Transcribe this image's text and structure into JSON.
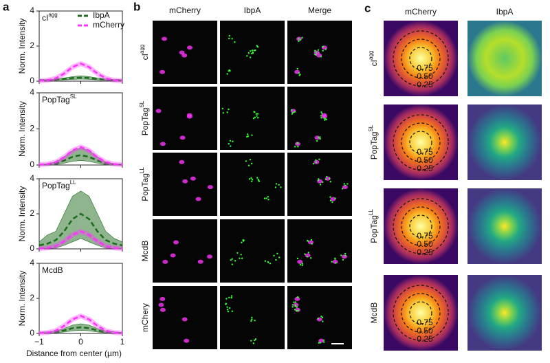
{
  "panel_labels": [
    "a",
    "b",
    "c"
  ],
  "chart_data": [
    {
      "type": "line",
      "title": [
        "cI",
        "agg"
      ],
      "ylabel": "Norm. Intensity",
      "legend": "upper right",
      "x": [
        -1,
        -0.8,
        -0.6,
        -0.4,
        -0.2,
        0,
        0.2,
        0.4,
        0.6,
        0.8,
        1
      ],
      "series": [
        {
          "name": "IbpA",
          "color": "#1e6b1e",
          "dashed": true,
          "values": [
            0.05,
            0.06,
            0.08,
            0.12,
            0.18,
            0.2,
            0.18,
            0.12,
            0.08,
            0.06,
            0.05
          ],
          "lower": [
            0.02,
            0.03,
            0.04,
            0.07,
            0.1,
            0.12,
            0.1,
            0.07,
            0.04,
            0.03,
            0.02
          ],
          "upper": [
            0.08,
            0.09,
            0.12,
            0.18,
            0.26,
            0.3,
            0.26,
            0.18,
            0.12,
            0.09,
            0.08
          ]
        },
        {
          "name": "mCherry",
          "color": "#ff33ff",
          "dashed": true,
          "values": [
            0.02,
            0.05,
            0.16,
            0.43,
            0.8,
            1,
            0.8,
            0.43,
            0.16,
            0.05,
            0.02
          ]
        }
      ],
      "xlim": [
        -1,
        1
      ],
      "ylim": [
        0,
        4
      ],
      "yticks": [
        0,
        2,
        4
      ],
      "xticks": [
        {
          "value": -1,
          "label": "−1"
        },
        0,
        1
      ]
    },
    {
      "type": "line",
      "title": [
        "PopTag",
        "SL"
      ],
      "ylabel": "Norm. Intensity",
      "x": [
        -1,
        -0.8,
        -0.6,
        -0.4,
        -0.2,
        0,
        0.2,
        0.4,
        0.6,
        0.8,
        1
      ],
      "series": [
        {
          "color": "#1e6b1e",
          "dashed": true,
          "values": [
            0.02,
            0.03,
            0.08,
            0.25,
            0.45,
            0.55,
            0.45,
            0.25,
            0.08,
            0.03,
            0.02
          ],
          "lower": [
            0,
            0,
            0.02,
            0.1,
            0.2,
            0.25,
            0.2,
            0.1,
            0.02,
            0,
            0
          ],
          "upper": [
            0.05,
            0.07,
            0.16,
            0.45,
            0.8,
            0.95,
            0.8,
            0.45,
            0.16,
            0.07,
            0.05
          ]
        },
        {
          "color": "#ff33ff",
          "dashed": true,
          "values": [
            0.02,
            0.05,
            0.16,
            0.43,
            0.8,
            1,
            0.8,
            0.43,
            0.16,
            0.05,
            0.02
          ]
        }
      ],
      "xlim": [
        -1,
        1
      ],
      "ylim": [
        0,
        4
      ],
      "yticks": [
        0,
        2,
        4
      ],
      "xticks": [
        {
          "value": -1,
          "label": "−1"
        },
        0,
        1
      ]
    },
    {
      "type": "line",
      "title": [
        "PopTag",
        "LL"
      ],
      "ylabel": "Norm. Intensity",
      "x": [
        -1,
        -0.8,
        -0.6,
        -0.4,
        -0.2,
        0,
        0.2,
        0.4,
        0.6,
        0.8,
        1
      ],
      "series": [
        {
          "color": "#1e6b1e",
          "dashed": true,
          "values": [
            0.2,
            0.3,
            0.5,
            1.0,
            1.7,
            2.0,
            1.7,
            1.0,
            0.5,
            0.3,
            0.2
          ],
          "lower": [
            0,
            0,
            0.05,
            0.2,
            0.4,
            0.6,
            0.4,
            0.2,
            0.05,
            0,
            0
          ],
          "upper": [
            0.4,
            0.8,
            1.0,
            2.0,
            3.0,
            3.3,
            3.0,
            2.0,
            1.0,
            0.6,
            0.4
          ]
        },
        {
          "color": "#ff33ff",
          "dashed": true,
          "values": [
            0.02,
            0.05,
            0.16,
            0.43,
            0.8,
            1,
            0.8,
            0.43,
            0.16,
            0.05,
            0.02
          ]
        }
      ],
      "xlim": [
        -1,
        1
      ],
      "ylim": [
        0,
        4
      ],
      "yticks": [
        0,
        2,
        4
      ],
      "xticks": [
        {
          "value": -1,
          "label": "−1"
        },
        0,
        1
      ]
    },
    {
      "type": "line",
      "title": [
        "McdB"
      ],
      "ylabel": "Norm. Intensity",
      "xlabel": "Distance from center (µm)",
      "x": [
        -1,
        -0.8,
        -0.6,
        -0.4,
        -0.2,
        0,
        0.2,
        0.4,
        0.6,
        0.8,
        1
      ],
      "series": [
        {
          "color": "#1e6b1e",
          "dashed": true,
          "values": [
            0.03,
            0.05,
            0.08,
            0.17,
            0.3,
            0.35,
            0.3,
            0.17,
            0.08,
            0.05,
            0.03
          ],
          "lower": [
            0,
            0.01,
            0.03,
            0.08,
            0.15,
            0.18,
            0.15,
            0.08,
            0.03,
            0.01,
            0
          ],
          "upper": [
            0.06,
            0.09,
            0.14,
            0.28,
            0.48,
            0.55,
            0.48,
            0.28,
            0.14,
            0.09,
            0.06
          ]
        },
        {
          "color": "#ff33ff",
          "dashed": true,
          "values": [
            0.02,
            0.05,
            0.16,
            0.43,
            0.8,
            1,
            0.8,
            0.43,
            0.16,
            0.05,
            0.02
          ]
        }
      ],
      "xlim": [
        -1,
        1
      ],
      "ylim": [
        0,
        4
      ],
      "yticks": [
        0,
        2,
        4
      ],
      "xticks": [
        {
          "value": -1,
          "label": "−1"
        },
        0,
        1
      ]
    }
  ],
  "images_b": {
    "columns": [
      "mCherry",
      "IbpA",
      "Merge"
    ],
    "rows": [
      [
        "cI",
        "agg"
      ],
      [
        "PopTag",
        "SL"
      ],
      [
        "PopTag",
        "LL"
      ],
      [
        "McdB"
      ],
      [
        "mChery"
      ]
    ]
  },
  "images_c": {
    "columns": [
      "mCherry",
      "IbpA"
    ],
    "rows": [
      [
        "cI",
        "agg"
      ],
      [
        "PopTag",
        "SL"
      ],
      [
        "PopTag",
        "LL"
      ],
      [
        "McdB"
      ]
    ],
    "contour_labels": [
      "0.75",
      "0.50",
      "0.25"
    ]
  }
}
